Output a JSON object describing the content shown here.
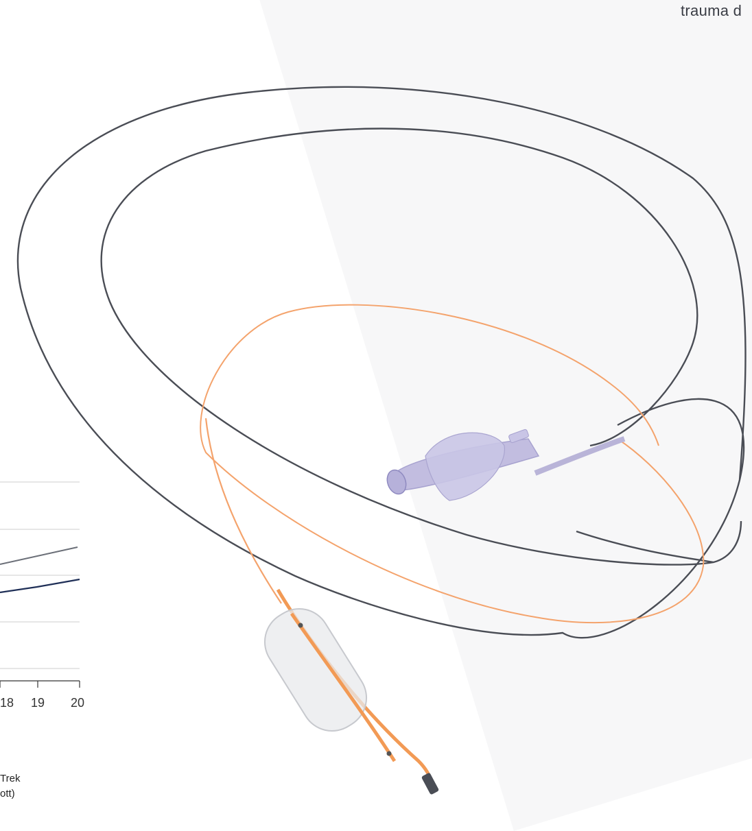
{
  "header": {
    "text": "trauma d"
  },
  "chart_data": {
    "type": "line",
    "x_ticks": [
      "18",
      "19",
      "20"
    ],
    "series": [
      {
        "color": "#6b6f78",
        "values": [
          null,
          null,
          null
        ]
      },
      {
        "color": "#1f2f57",
        "values": [
          null,
          null,
          null
        ]
      }
    ]
  },
  "legend": {
    "line1": "Trek",
    "line2": "ott)"
  },
  "colors": {
    "guidewire": "#4a4d55",
    "catheter_orange": "#f4a36c",
    "hub_purple": "#b9b4d8"
  }
}
